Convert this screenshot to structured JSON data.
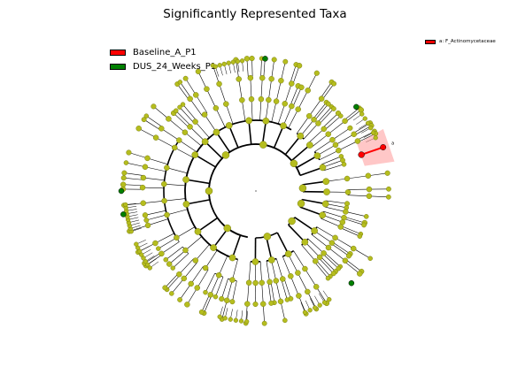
{
  "title": "Significantly Represented Taxa",
  "legend": {
    "items": [
      {
        "label": "Baseline_A_P1",
        "color": "#ff0000"
      },
      {
        "label": "DUS_24_Weeks_P1",
        "color": "#008000"
      }
    ]
  },
  "highlight_legend": {
    "label": "a: F_Actinomycetaceae",
    "color": "#ff0000"
  },
  "highlight_marker": "a",
  "colors": {
    "node_default": "#b5bd1e",
    "node_default_edge": "#7a7f10",
    "group_a": "#ff0000",
    "group_b": "#008000",
    "edge": "#000000",
    "highlight_fill": "#ff9999"
  }
}
